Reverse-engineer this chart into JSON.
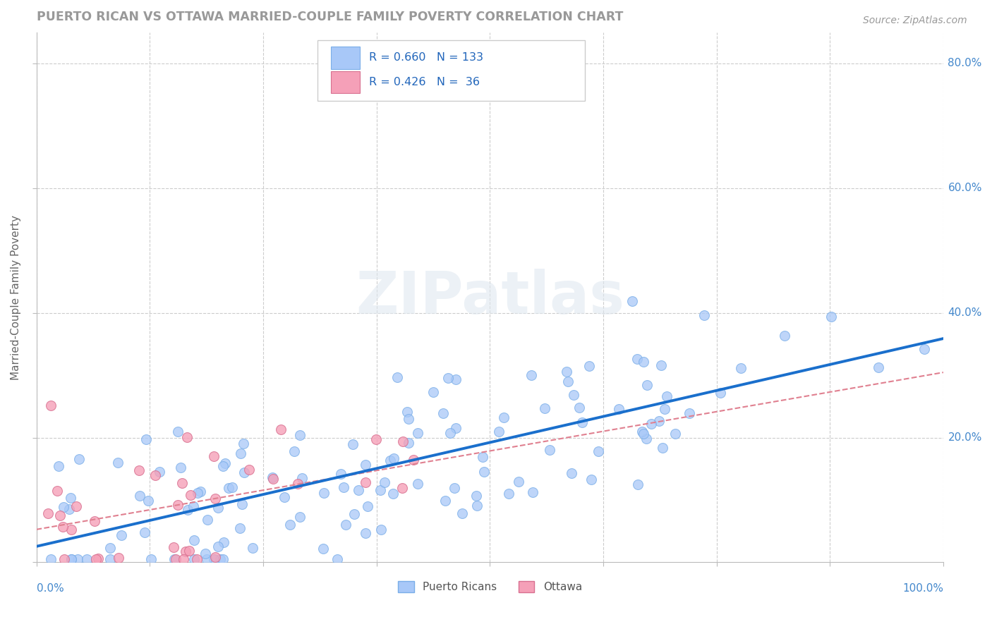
{
  "title": "PUERTO RICAN VS OTTAWA MARRIED-COUPLE FAMILY POVERTY CORRELATION CHART",
  "source": "Source: ZipAtlas.com",
  "ylabel": "Married-Couple Family Poverty",
  "watermark": "ZIPatlas",
  "background_color": "#ffffff",
  "blue_R": 0.66,
  "blue_N": 133,
  "pink_R": 0.426,
  "pink_N": 36,
  "blue_color": "#a8c8f8",
  "blue_edge": "#7aaee8",
  "blue_line_color": "#1a6fcc",
  "pink_color": "#f5a0b8",
  "pink_edge": "#d87090",
  "pink_line_color": "#e08090",
  "grid_color": "#cccccc",
  "title_color": "#888888",
  "axis_color": "#4488cc",
  "xlim": [
    0,
    1
  ],
  "ylim": [
    0,
    0.85
  ],
  "seed_blue": 7,
  "seed_pink": 12
}
